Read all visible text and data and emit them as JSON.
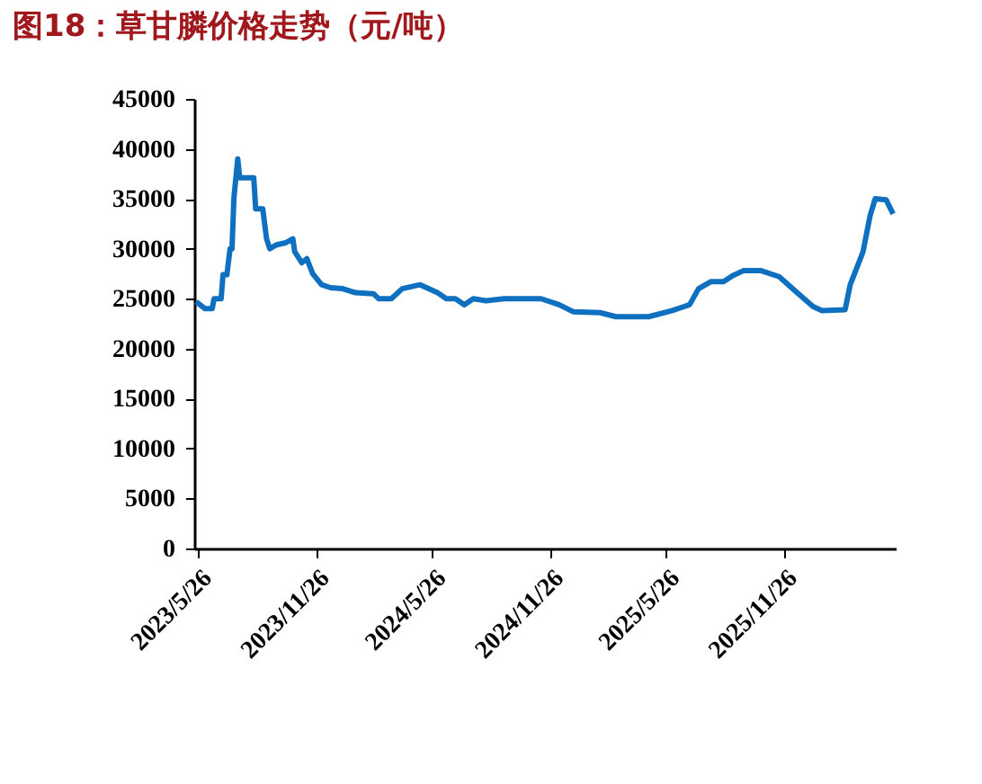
{
  "chart_data": {
    "type": "line",
    "title": "图18：草甘膦价格走势（元/吨）",
    "x": [
      "2023-05-23",
      "2023-06-06",
      "2023-06-17",
      "2023-06-20",
      "2023-07-01",
      "2023-07-04",
      "2023-07-10",
      "2023-07-15",
      "2023-07-18",
      "2023-07-21",
      "2023-07-27",
      "2023-07-30",
      "2023-08-21",
      "2023-08-24",
      "2023-09-04",
      "2023-09-10",
      "2023-09-15",
      "2023-09-26",
      "2023-10-10",
      "2023-10-21",
      "2023-10-24",
      "2023-11-04",
      "2023-11-12",
      "2023-11-21",
      "2023-12-05",
      "2023-12-19",
      "2024-01-07",
      "2024-01-27",
      "2024-02-24",
      "2024-03-03",
      "2024-03-23",
      "2024-04-09",
      "2024-05-07",
      "2024-06-03",
      "2024-06-17",
      "2024-07-01",
      "2024-07-15",
      "2024-07-29",
      "2024-08-18",
      "2024-09-15",
      "2024-11-12",
      "2024-12-10",
      "2025-01-01",
      "2025-02-12",
      "2025-03-09",
      "2025-04-29",
      "2025-06-04",
      "2025-07-02",
      "2025-07-16",
      "2025-08-04",
      "2025-08-24",
      "2025-09-07",
      "2025-09-24",
      "2025-10-22",
      "2025-11-19",
      "2025-12-17",
      "2026-01-11",
      "2026-01-25",
      "2026-03-02",
      "2026-03-10",
      "2026-03-30",
      "2026-04-10",
      "2026-04-18",
      "2026-05-05",
      "2026-05-16"
    ],
    "series": [
      {
        "color": "#1070c0",
        "values": [
          24700,
          24000,
          24000,
          25000,
          25000,
          27400,
          27400,
          30000,
          30000,
          35100,
          39000,
          37100,
          37100,
          34000,
          34000,
          31000,
          30000,
          30400,
          30600,
          31000,
          29700,
          28600,
          29000,
          27500,
          26400,
          26100,
          26000,
          25600,
          25500,
          25000,
          25000,
          26000,
          26400,
          25600,
          25000,
          25000,
          24400,
          25000,
          24800,
          25000,
          25000,
          24400,
          23700,
          23600,
          23200,
          23200,
          23800,
          24400,
          26000,
          26700,
          26700,
          27300,
          27800,
          27800,
          27200,
          25600,
          24200,
          23800,
          23900,
          26400,
          29700,
          33300,
          35000,
          34900,
          33500
        ]
      }
    ],
    "xlim": [
      "2023-05-20",
      "2026-05-20"
    ],
    "xticks": [
      {
        "value": "2023-05-26",
        "label": "2023/5/26"
      },
      {
        "value": "2023-11-26",
        "label": "2023/11/26"
      },
      {
        "value": "2024-05-26",
        "label": "2024/5/26"
      },
      {
        "value": "2024-11-26",
        "label": "2024/11/26"
      },
      {
        "value": "2025-05-26",
        "label": "2025/5/26"
      },
      {
        "value": "2025-11-26",
        "label": "2025/11/26"
      }
    ],
    "ylim": [
      0,
      45000
    ],
    "yticks": [
      0,
      5000,
      10000,
      15000,
      20000,
      25000,
      30000,
      35000,
      40000,
      45000
    ],
    "grid": false
  }
}
